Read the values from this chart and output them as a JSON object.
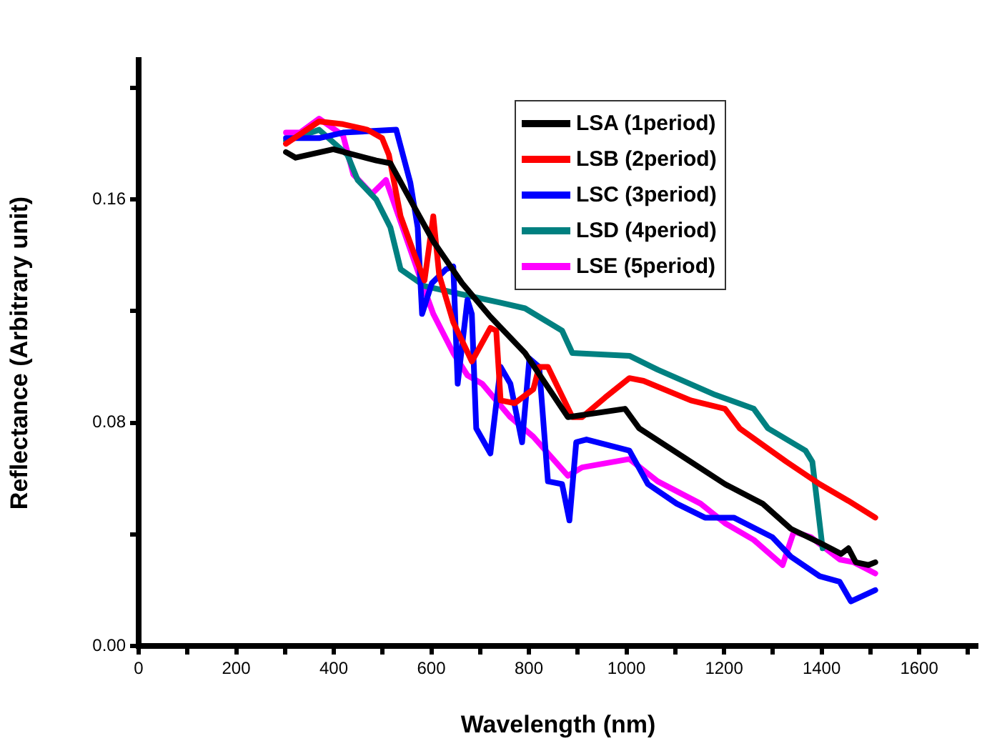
{
  "chart_data": {
    "type": "line",
    "xlabel": "Wavelength (nm)",
    "ylabel": "Reflectance (Arbitrary unit)",
    "xlim": [
      0,
      1720
    ],
    "ylim": [
      0,
      0.21
    ],
    "xticks": [
      0,
      {
        "value": 100,
        "label": null
      },
      200,
      {
        "value": 300,
        "label": null
      },
      400,
      {
        "value": 500,
        "label": null
      },
      600,
      {
        "value": 700,
        "label": null
      },
      800,
      {
        "value": 900,
        "label": null
      },
      1000,
      {
        "value": 1100,
        "label": null
      },
      1200,
      {
        "value": 1300,
        "label": null
      },
      1400,
      {
        "value": 1500,
        "label": null
      },
      1600,
      {
        "value": 1700,
        "label": null
      }
    ],
    "yticks": [
      {
        "value": 0,
        "label": "0.00"
      },
      {
        "value": 0.04,
        "label": null
      },
      0.08,
      {
        "value": 0.12,
        "label": null
      },
      0.16,
      {
        "value": 0.2,
        "label": null
      }
    ],
    "grid": false,
    "legend": "top right",
    "marker": "none",
    "line_style": "solid",
    "series": [
      {
        "name": "LSA (1period)",
        "color": "#000000",
        "x": [
          302,
          322,
          399,
          487,
          516,
          566,
          604,
          663,
          721,
          792,
          880,
          997,
          1026,
          1132,
          1202,
          1279,
          1337,
          1396,
          1440,
          1455,
          1470,
          1496,
          1510
        ],
        "values": [
          0.177,
          0.175,
          0.178,
          0.174,
          0.173,
          0.157,
          0.145,
          0.13,
          0.118,
          0.105,
          0.082,
          0.085,
          0.078,
          0.066,
          0.058,
          0.051,
          0.042,
          0.037,
          0.033,
          0.035,
          0.03,
          0.029,
          0.03
        ]
      },
      {
        "name": "LSB (2period)",
        "color": "#ff0000",
        "x": [
          302,
          370,
          419,
          469,
          499,
          513,
          537,
          566,
          586,
          604,
          616,
          645,
          683,
          721,
          733,
          742,
          771,
          809,
          821,
          839,
          889,
          909,
          956,
          1006,
          1035,
          1132,
          1202,
          1232,
          1328,
          1396,
          1455,
          1510
        ],
        "values": [
          0.18,
          0.188,
          0.187,
          0.185,
          0.182,
          0.176,
          0.154,
          0.14,
          0.131,
          0.154,
          0.133,
          0.116,
          0.102,
          0.114,
          0.113,
          0.088,
          0.087,
          0.092,
          0.1,
          0.1,
          0.082,
          0.082,
          0.089,
          0.096,
          0.095,
          0.088,
          0.085,
          0.078,
          0.066,
          0.058,
          0.052,
          0.046
        ]
      },
      {
        "name": "LSC (3period)",
        "color": "#0000ff",
        "x": [
          302,
          370,
          419,
          528,
          557,
          572,
          581,
          601,
          630,
          645,
          654,
          674,
          683,
          692,
          721,
          742,
          762,
          786,
          801,
          821,
          839,
          868,
          883,
          897,
          918,
          1006,
          1044,
          1103,
          1161,
          1220,
          1299,
          1337,
          1396,
          1437,
          1460,
          1510
        ],
        "values": [
          0.182,
          0.182,
          0.184,
          0.185,
          0.166,
          0.15,
          0.119,
          0.13,
          0.135,
          0.136,
          0.094,
          0.124,
          0.119,
          0.078,
          0.069,
          0.1,
          0.094,
          0.073,
          0.103,
          0.1,
          0.059,
          0.058,
          0.045,
          0.073,
          0.074,
          0.07,
          0.058,
          0.051,
          0.046,
          0.046,
          0.039,
          0.032,
          0.025,
          0.023,
          0.016,
          0.02
        ]
      },
      {
        "name": "LSD (4period)",
        "color": "#008080",
        "x": [
          302,
          370,
          428,
          449,
          487,
          516,
          537,
          586,
          663,
          742,
          792,
          868,
          889,
          1006,
          1064,
          1182,
          1261,
          1290,
          1367,
          1381,
          1402
        ],
        "values": [
          0.181,
          0.185,
          0.176,
          0.167,
          0.16,
          0.15,
          0.135,
          0.129,
          0.126,
          0.123,
          0.121,
          0.113,
          0.105,
          0.104,
          0.099,
          0.09,
          0.085,
          0.078,
          0.07,
          0.066,
          0.035
        ]
      },
      {
        "name": "LSE (5period)",
        "color": "#ff00ff",
        "x": [
          302,
          331,
          370,
          419,
          440,
          478,
          507,
          537,
          575,
          604,
          645,
          674,
          704,
          762,
          809,
          880,
          909,
          1006,
          1064,
          1152,
          1202,
          1261,
          1320,
          1343,
          1378,
          1437,
          1466,
          1510
        ],
        "values": [
          0.184,
          0.184,
          0.189,
          0.183,
          0.169,
          0.162,
          0.167,
          0.152,
          0.133,
          0.119,
          0.105,
          0.097,
          0.094,
          0.082,
          0.075,
          0.061,
          0.064,
          0.067,
          0.059,
          0.051,
          0.044,
          0.038,
          0.029,
          0.041,
          0.039,
          0.031,
          0.03,
          0.026
        ]
      }
    ]
  }
}
